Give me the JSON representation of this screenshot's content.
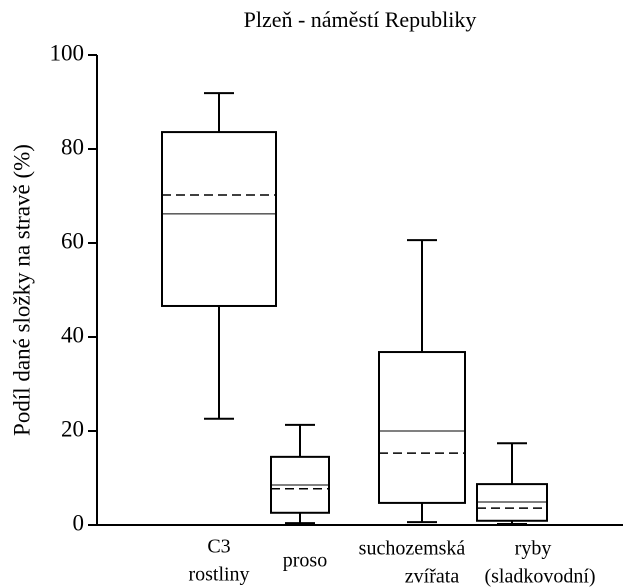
{
  "chart_data": {
    "type": "box",
    "title": "Plzeň - náměstí Republiky",
    "y_label": "Podíl dané složky na stravě (%)",
    "categories": [
      [
        "C3",
        "rostliny"
      ],
      [
        "proso"
      ],
      [
        "suchozemská",
        "zvířata"
      ],
      [
        "ryby",
        "(sladkovodní)"
      ]
    ],
    "boxes": [
      {
        "whisker_low": 22.6,
        "q1": 46.6,
        "median": 66.2,
        "mean": 70.2,
        "q3": 83.6,
        "whisker_high": 91.9
      },
      {
        "whisker_low": 0.4,
        "q1": 2.6,
        "median": 8.5,
        "mean": 7.7,
        "q3": 14.5,
        "whisker_high": 21.3
      },
      {
        "whisker_low": 0.6,
        "q1": 4.7,
        "median": 20,
        "mean": 15.3,
        "q3": 36.8,
        "whisker_high": 60.6
      },
      {
        "whisker_low": 0.2,
        "q1": 0.9,
        "median": 4.9,
        "mean": 3.6,
        "q3": 8.7,
        "whisker_high": 17.4
      }
    ],
    "ylim": [
      0,
      100
    ],
    "yticks": [
      0,
      20,
      40,
      60,
      80,
      100
    ],
    "color": "#000000"
  }
}
